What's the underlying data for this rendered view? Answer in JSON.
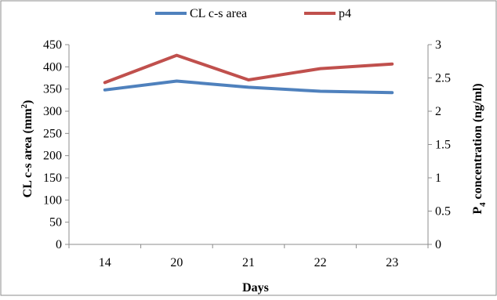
{
  "chart_data": {
    "type": "line",
    "categories": [
      "14",
      "20",
      "21",
      "22",
      "23"
    ],
    "xlabel": "Days",
    "ylabel_left": "CL c-s area (mm",
    "ylabel_left_sup": "2",
    "ylabel_left_suffix": ")",
    "ylabel_right_prefix": "P",
    "ylabel_right_sub": "4",
    "ylabel_right_suffix": " concentration (ng/ml)",
    "ylim_left": [
      0,
      450
    ],
    "yticks_left": [
      "0",
      "50",
      "100",
      "150",
      "200",
      "250",
      "300",
      "350",
      "400",
      "450"
    ],
    "ylim_right": [
      0,
      3
    ],
    "yticks_right": [
      "0",
      "0.5",
      "1",
      "1.5",
      "2",
      "2.5",
      "3"
    ],
    "grid": false,
    "legend_position": "top",
    "series": [
      {
        "name": "CL c-s area",
        "axis": "left",
        "color": "#4F81BD",
        "values": [
          348,
          368,
          354,
          345,
          342
        ]
      },
      {
        "name": "p4",
        "axis": "right",
        "color": "#C0504D",
        "values": [
          2.43,
          2.84,
          2.47,
          2.64,
          2.71
        ]
      }
    ]
  }
}
